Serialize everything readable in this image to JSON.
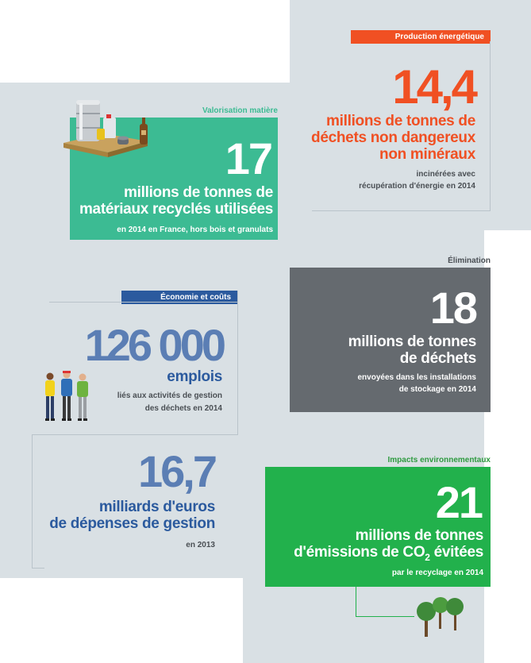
{
  "colors": {
    "background": "#d9e0e4",
    "orange": "#f05023",
    "teal": "#3cbb93",
    "gray_box": "#656a6f",
    "blue": "#5b7eb4",
    "navy": "#2b5a9e",
    "green_box": "#22b14c",
    "green_text": "#2d9a3f"
  },
  "production": {
    "tag": "Production énergétique",
    "number": "14,4",
    "line1": "millions de tonnes de",
    "line2": "déchets non dangereux",
    "line3": "non minéraux",
    "note1": "incinérées avec",
    "note2": "récupération d'énergie en 2014"
  },
  "valorisation": {
    "label": "Valorisation matière",
    "number": "17",
    "line1": "millions de tonnes de",
    "line2": "matériaux recyclés utilisées",
    "note": "en 2014 en France, hors bois et granulats",
    "illustration": "recycled-materials-illustration"
  },
  "elimination": {
    "label": "Élimination",
    "number": "18",
    "line1": "millions de tonnes",
    "line2": "de déchets",
    "note1": "envoyées dans les installations",
    "note2": "de stockage en 2014"
  },
  "economie": {
    "tag": "Économie et coûts",
    "number": "126 000",
    "unit": "emplois",
    "note1": "liés aux activités de gestion",
    "note2": "des déchets en 2014",
    "illustration": "workers-illustration"
  },
  "depenses": {
    "number": "16,7",
    "line1": "milliards d'euros",
    "line2": "de dépenses de gestion",
    "note": "en 2013"
  },
  "impacts": {
    "label": "Impacts environnementaux",
    "number": "21",
    "line1": "millions de tonnes",
    "line2_pre": "d'émissions de CO",
    "line2_sub": "2",
    "line2_post": " évitées",
    "note": "par le recyclage en 2014",
    "illustration": "trees-illustration"
  }
}
